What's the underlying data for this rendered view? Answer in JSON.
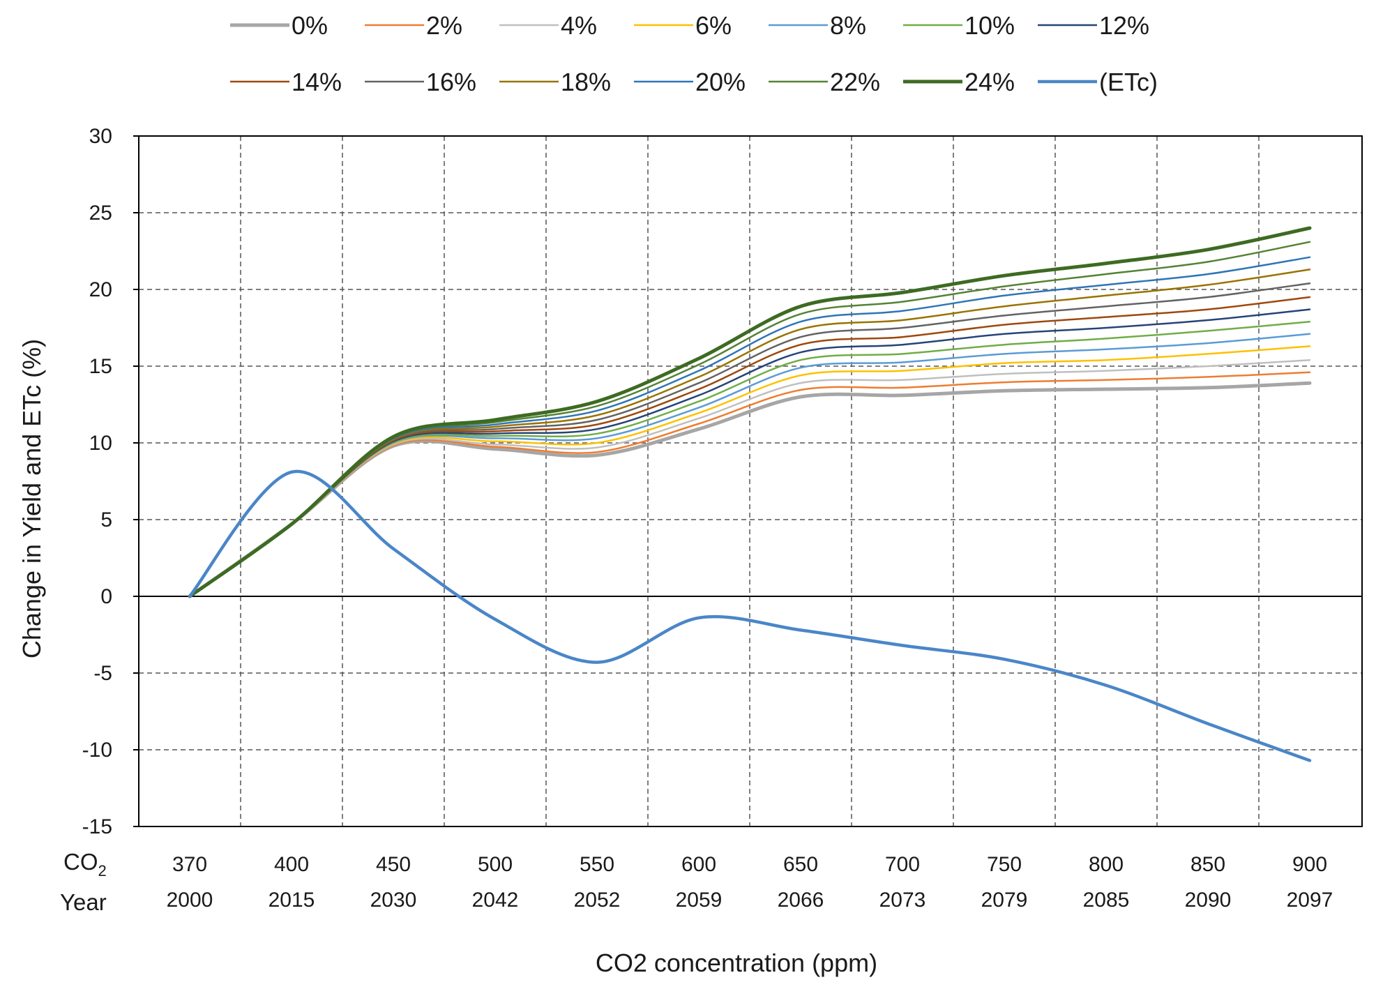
{
  "chart_data": {
    "type": "line",
    "xlabel": "CO2 concentration (ppm)",
    "ylabel": "Change in Yield and ETc (%)",
    "ylim": [
      -15,
      30
    ],
    "yticks": [
      -15,
      -10,
      -5,
      0,
      5,
      10,
      15,
      20,
      25,
      30
    ],
    "grid": "dashed",
    "legend_position": "top",
    "row_labels": {
      "co2_main": "CO",
      "co2_sub": "2",
      "year": "Year"
    },
    "categories": [
      "370",
      "400",
      "450",
      "500",
      "550",
      "600",
      "650",
      "700",
      "750",
      "800",
      "850",
      "900"
    ],
    "years": [
      "2000",
      "2015",
      "2030",
      "2042",
      "2052",
      "2059",
      "2066",
      "2073",
      "2079",
      "2085",
      "2090",
      "2097"
    ],
    "series": [
      {
        "name": "0%",
        "color": "#a6a6a6",
        "width": 5,
        "values": [
          0,
          4.7,
          9.8,
          9.6,
          9.2,
          10.9,
          13.0,
          13.1,
          13.4,
          13.5,
          13.6,
          13.9
        ]
      },
      {
        "name": "2%",
        "color": "#ed7d31",
        "width": 2.5,
        "values": [
          0,
          4.7,
          9.85,
          9.75,
          9.4,
          11.25,
          13.45,
          13.6,
          13.95,
          14.1,
          14.3,
          14.6
        ]
      },
      {
        "name": "4%",
        "color": "#bfbfbf",
        "width": 2.5,
        "values": [
          0,
          4.7,
          9.9,
          9.9,
          9.7,
          11.6,
          13.9,
          14.1,
          14.5,
          14.7,
          15.0,
          15.4
        ]
      },
      {
        "name": "6%",
        "color": "#ffc000",
        "width": 2.5,
        "values": [
          0,
          4.7,
          9.95,
          10.1,
          10.0,
          11.95,
          14.4,
          14.7,
          15.2,
          15.4,
          15.8,
          16.3
        ]
      },
      {
        "name": "8%",
        "color": "#5b9bd5",
        "width": 2.5,
        "values": [
          0,
          4.7,
          10.0,
          10.3,
          10.3,
          12.3,
          14.9,
          15.25,
          15.8,
          16.1,
          16.5,
          17.1
        ]
      },
      {
        "name": "10%",
        "color": "#70ad47",
        "width": 2.5,
        "values": [
          0,
          4.7,
          10.05,
          10.45,
          10.6,
          12.7,
          15.4,
          15.8,
          16.4,
          16.8,
          17.3,
          17.9
        ]
      },
      {
        "name": "12%",
        "color": "#264478",
        "width": 2.5,
        "values": [
          0,
          4.7,
          10.1,
          10.6,
          10.9,
          13.1,
          15.9,
          16.4,
          17.1,
          17.5,
          18.0,
          18.7
        ]
      },
      {
        "name": "14%",
        "color": "#9e480e",
        "width": 2.5,
        "values": [
          0,
          4.7,
          10.15,
          10.75,
          11.2,
          13.5,
          16.4,
          16.9,
          17.7,
          18.2,
          18.7,
          19.5
        ]
      },
      {
        "name": "16%",
        "color": "#636363",
        "width": 2.5,
        "values": [
          0,
          4.7,
          10.2,
          10.9,
          11.5,
          13.9,
          16.9,
          17.5,
          18.3,
          18.9,
          19.5,
          20.4
        ]
      },
      {
        "name": "18%",
        "color": "#997300",
        "width": 2.5,
        "values": [
          0,
          4.7,
          10.25,
          11.05,
          11.8,
          14.3,
          17.4,
          18.0,
          18.9,
          19.6,
          20.3,
          21.3
        ]
      },
      {
        "name": "20%",
        "color": "#2e75b6",
        "width": 2.5,
        "values": [
          0,
          4.7,
          10.3,
          11.2,
          12.1,
          14.7,
          17.9,
          18.6,
          19.6,
          20.3,
          21.0,
          22.1
        ]
      },
      {
        "name": "22%",
        "color": "#548235",
        "width": 2.5,
        "values": [
          0,
          4.7,
          10.35,
          11.35,
          12.4,
          15.1,
          18.4,
          19.2,
          20.2,
          21.0,
          21.8,
          23.1
        ]
      },
      {
        "name": "24%",
        "color": "#3d6b22",
        "width": 5,
        "values": [
          0,
          4.7,
          10.4,
          11.5,
          12.7,
          15.5,
          18.9,
          19.8,
          20.9,
          21.7,
          22.6,
          24.0
        ]
      },
      {
        "name": "(ETc)",
        "color": "#4a86c8",
        "width": 4.5,
        "values": [
          0,
          8.1,
          3.1,
          -1.5,
          -4.3,
          -1.4,
          -2.2,
          -3.2,
          -4.1,
          -5.8,
          -8.3,
          -10.7
        ]
      }
    ]
  }
}
